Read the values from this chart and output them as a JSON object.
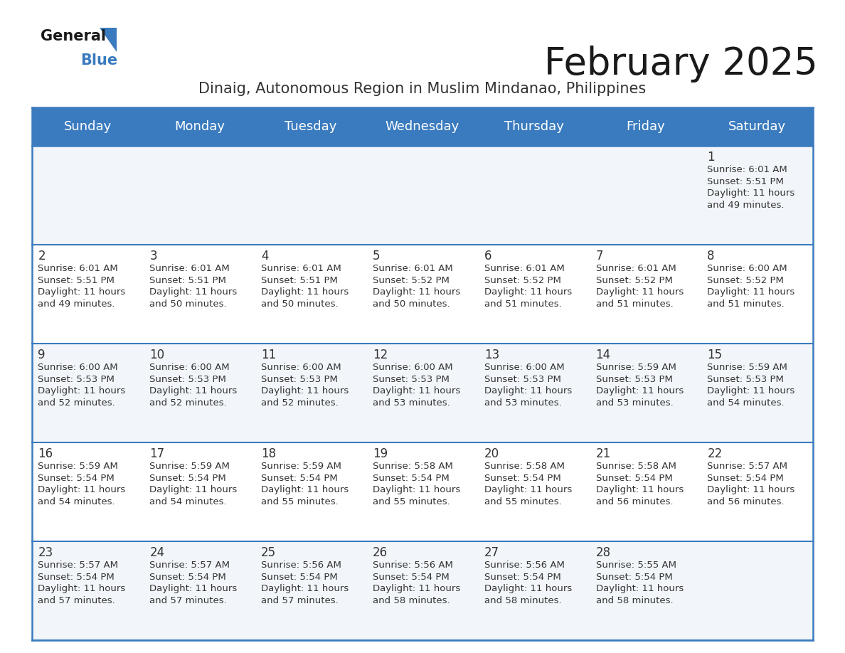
{
  "title": "February 2025",
  "subtitle": "Dinaig, Autonomous Region in Muslim Mindanao, Philippines",
  "header_color": "#3a7bbf",
  "header_text_color": "#ffffff",
  "border_color": "#3a7bbf",
  "cell_bg_even": "#f2f6fa",
  "cell_bg_odd": "#ffffff",
  "day_number_color": "#333333",
  "info_text_color": "#333333",
  "days_of_week": [
    "Sunday",
    "Monday",
    "Tuesday",
    "Wednesday",
    "Thursday",
    "Friday",
    "Saturday"
  ],
  "weeks": [
    [
      {
        "day": null,
        "sunrise": null,
        "sunset": null,
        "daylight": null
      },
      {
        "day": null,
        "sunrise": null,
        "sunset": null,
        "daylight": null
      },
      {
        "day": null,
        "sunrise": null,
        "sunset": null,
        "daylight": null
      },
      {
        "day": null,
        "sunrise": null,
        "sunset": null,
        "daylight": null
      },
      {
        "day": null,
        "sunrise": null,
        "sunset": null,
        "daylight": null
      },
      {
        "day": null,
        "sunrise": null,
        "sunset": null,
        "daylight": null
      },
      {
        "day": 1,
        "sunrise": "6:01 AM",
        "sunset": "5:51 PM",
        "daylight": "11 hours\nand 49 minutes."
      }
    ],
    [
      {
        "day": 2,
        "sunrise": "6:01 AM",
        "sunset": "5:51 PM",
        "daylight": "11 hours\nand 49 minutes."
      },
      {
        "day": 3,
        "sunrise": "6:01 AM",
        "sunset": "5:51 PM",
        "daylight": "11 hours\nand 50 minutes."
      },
      {
        "day": 4,
        "sunrise": "6:01 AM",
        "sunset": "5:51 PM",
        "daylight": "11 hours\nand 50 minutes."
      },
      {
        "day": 5,
        "sunrise": "6:01 AM",
        "sunset": "5:52 PM",
        "daylight": "11 hours\nand 50 minutes."
      },
      {
        "day": 6,
        "sunrise": "6:01 AM",
        "sunset": "5:52 PM",
        "daylight": "11 hours\nand 51 minutes."
      },
      {
        "day": 7,
        "sunrise": "6:01 AM",
        "sunset": "5:52 PM",
        "daylight": "11 hours\nand 51 minutes."
      },
      {
        "day": 8,
        "sunrise": "6:00 AM",
        "sunset": "5:52 PM",
        "daylight": "11 hours\nand 51 minutes."
      }
    ],
    [
      {
        "day": 9,
        "sunrise": "6:00 AM",
        "sunset": "5:53 PM",
        "daylight": "11 hours\nand 52 minutes."
      },
      {
        "day": 10,
        "sunrise": "6:00 AM",
        "sunset": "5:53 PM",
        "daylight": "11 hours\nand 52 minutes."
      },
      {
        "day": 11,
        "sunrise": "6:00 AM",
        "sunset": "5:53 PM",
        "daylight": "11 hours\nand 52 minutes."
      },
      {
        "day": 12,
        "sunrise": "6:00 AM",
        "sunset": "5:53 PM",
        "daylight": "11 hours\nand 53 minutes."
      },
      {
        "day": 13,
        "sunrise": "6:00 AM",
        "sunset": "5:53 PM",
        "daylight": "11 hours\nand 53 minutes."
      },
      {
        "day": 14,
        "sunrise": "5:59 AM",
        "sunset": "5:53 PM",
        "daylight": "11 hours\nand 53 minutes."
      },
      {
        "day": 15,
        "sunrise": "5:59 AM",
        "sunset": "5:53 PM",
        "daylight": "11 hours\nand 54 minutes."
      }
    ],
    [
      {
        "day": 16,
        "sunrise": "5:59 AM",
        "sunset": "5:54 PM",
        "daylight": "11 hours\nand 54 minutes."
      },
      {
        "day": 17,
        "sunrise": "5:59 AM",
        "sunset": "5:54 PM",
        "daylight": "11 hours\nand 54 minutes."
      },
      {
        "day": 18,
        "sunrise": "5:59 AM",
        "sunset": "5:54 PM",
        "daylight": "11 hours\nand 55 minutes."
      },
      {
        "day": 19,
        "sunrise": "5:58 AM",
        "sunset": "5:54 PM",
        "daylight": "11 hours\nand 55 minutes."
      },
      {
        "day": 20,
        "sunrise": "5:58 AM",
        "sunset": "5:54 PM",
        "daylight": "11 hours\nand 55 minutes."
      },
      {
        "day": 21,
        "sunrise": "5:58 AM",
        "sunset": "5:54 PM",
        "daylight": "11 hours\nand 56 minutes."
      },
      {
        "day": 22,
        "sunrise": "5:57 AM",
        "sunset": "5:54 PM",
        "daylight": "11 hours\nand 56 minutes."
      }
    ],
    [
      {
        "day": 23,
        "sunrise": "5:57 AM",
        "sunset": "5:54 PM",
        "daylight": "11 hours\nand 57 minutes."
      },
      {
        "day": 24,
        "sunrise": "5:57 AM",
        "sunset": "5:54 PM",
        "daylight": "11 hours\nand 57 minutes."
      },
      {
        "day": 25,
        "sunrise": "5:56 AM",
        "sunset": "5:54 PM",
        "daylight": "11 hours\nand 57 minutes."
      },
      {
        "day": 26,
        "sunrise": "5:56 AM",
        "sunset": "5:54 PM",
        "daylight": "11 hours\nand 58 minutes."
      },
      {
        "day": 27,
        "sunrise": "5:56 AM",
        "sunset": "5:54 PM",
        "daylight": "11 hours\nand 58 minutes."
      },
      {
        "day": 28,
        "sunrise": "5:55 AM",
        "sunset": "5:54 PM",
        "daylight": "11 hours\nand 58 minutes."
      },
      {
        "day": null,
        "sunrise": null,
        "sunset": null,
        "daylight": null
      }
    ]
  ],
  "title_fontsize": 38,
  "subtitle_fontsize": 15,
  "header_fontsize": 13,
  "day_num_fontsize": 12,
  "info_fontsize": 9.5,
  "logo_general_fontsize": 15,
  "logo_blue_fontsize": 15
}
